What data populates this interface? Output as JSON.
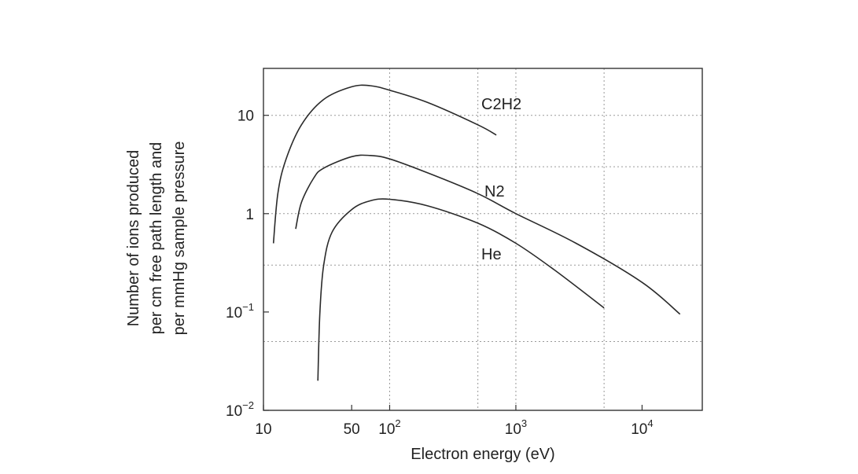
{
  "chart_data": {
    "type": "line",
    "xlabel": "Electron energy (eV)",
    "ylabel_lines": [
      "Number of ions produced",
      "per cm free path length and",
      "per mmHg sample pressure"
    ],
    "x_scale": "log",
    "y_scale": "log",
    "xlim": [
      10,
      30000
    ],
    "ylim": [
      0.01,
      30
    ],
    "grid": true,
    "x_ticks": [
      {
        "value": 10,
        "label": "10"
      },
      {
        "value": 50,
        "label": "50"
      },
      {
        "value": 100,
        "label": "10",
        "sup": "2"
      },
      {
        "value": 1000,
        "label": "10",
        "sup": "3"
      },
      {
        "value": 10000,
        "label": "10",
        "sup": "4"
      }
    ],
    "y_ticks": [
      {
        "value": 0.01,
        "label": "10",
        "sup": "−2"
      },
      {
        "value": 0.1,
        "label": "10",
        "sup": "−1"
      },
      {
        "value": 1,
        "label": "1",
        "sup": ""
      },
      {
        "value": 10,
        "label": "10",
        "sup": ""
      }
    ],
    "series": [
      {
        "name": "C2H2",
        "x": [
          12,
          13,
          15,
          20,
          30,
          50,
          70,
          100,
          200,
          500,
          700
        ],
        "y": [
          0.5,
          1.6,
          3.5,
          8.0,
          14.5,
          19.5,
          20.0,
          18.0,
          13.5,
          8.0,
          6.3
        ]
      },
      {
        "name": "N2",
        "x": [
          18,
          20,
          25,
          30,
          50,
          70,
          100,
          200,
          500,
          1000,
          3000,
          10000,
          20000
        ],
        "y": [
          0.7,
          1.3,
          2.3,
          2.9,
          3.8,
          3.9,
          3.6,
          2.6,
          1.6,
          1.0,
          0.5,
          0.2,
          0.095
        ]
      },
      {
        "name": "He",
        "x": [
          27,
          28,
          30,
          35,
          50,
          70,
          100,
          200,
          500,
          1000,
          2000,
          5000
        ],
        "y": [
          0.02,
          0.1,
          0.3,
          0.65,
          1.1,
          1.35,
          1.4,
          1.2,
          0.8,
          0.5,
          0.27,
          0.11
        ]
      }
    ],
    "series_labels": [
      {
        "name": "C2H2",
        "text": "C2H2"
      },
      {
        "name": "N2",
        "text": "N2"
      },
      {
        "name": "He",
        "text": "He"
      }
    ]
  }
}
